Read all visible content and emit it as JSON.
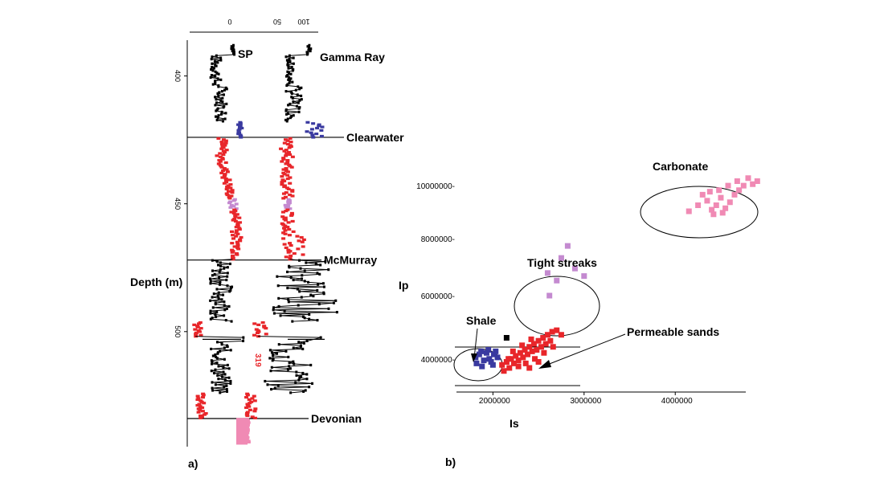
{
  "panel_a_label": "a)",
  "panel_b_label": "b)",
  "chart_data": [
    {
      "type": "line",
      "panel": "a",
      "ylabel": "Depth (m)",
      "depth_ticks": [
        400,
        450,
        500
      ],
      "depth_range": [
        386,
        545
      ],
      "sp_axis": {
        "ticks": [
          "0"
        ],
        "range": [
          0,
          50
        ]
      },
      "gr_axis": {
        "ticks": [
          "50",
          "100"
        ],
        "range": [
          0,
          140
        ]
      },
      "series": [
        {
          "name": "SP"
        },
        {
          "name": "Gamma Ray"
        }
      ],
      "formation_tops": [
        {
          "name": "Clearwater",
          "depth": 424
        },
        {
          "name": "McMurray",
          "depth": 472
        },
        {
          "name": "Devonian",
          "depth": 534
        }
      ],
      "annotations": [
        {
          "text": "319",
          "depth": 504
        }
      ],
      "facies_colors": {
        "shale": "#3a3aa0",
        "sand": "#e8262a",
        "tight": "#c48ad0",
        "carbonate": "#f08ab4",
        "other": "#000000"
      }
    },
    {
      "type": "scatter",
      "panel": "b",
      "xlabel": "Is",
      "ylabel": "Ip",
      "x_ticks": [
        "2000000",
        "3000000",
        "4000000"
      ],
      "y_ticks": [
        "4000000",
        "6000000",
        "8000000",
        "10000000"
      ],
      "xlim": [
        1600000,
        4950000
      ],
      "ylim": [
        3600000,
        11600000
      ],
      "groups": [
        {
          "name": "Shale",
          "color": "#3a3aa0",
          "points": [
            [
              1810000,
              4750000
            ],
            [
              1850000,
              4850000
            ],
            [
              1900000,
              4650000
            ],
            [
              1930000,
              4900000
            ],
            [
              1960000,
              4700000
            ],
            [
              2010000,
              4850000
            ],
            [
              1880000,
              4450000
            ],
            [
              2000000,
              4500000
            ],
            [
              1820000,
              4550000
            ],
            [
              1950000,
              5000000
            ],
            [
              2050000,
              4750000
            ],
            [
              1870000,
              4950000
            ],
            [
              1980000,
              4600000
            ],
            [
              2030000,
              4950000
            ]
          ]
        },
        {
          "name": "Permeable sands",
          "color": "#e8262a",
          "points": [
            [
              2100000,
              4500000
            ],
            [
              2150000,
              4600000
            ],
            [
              2200000,
              4700000
            ],
            [
              2250000,
              4800000
            ],
            [
              2300000,
              4900000
            ],
            [
              2350000,
              5000000
            ],
            [
              2400000,
              5100000
            ],
            [
              2450000,
              5200000
            ],
            [
              2500000,
              5300000
            ],
            [
              2550000,
              5400000
            ],
            [
              2600000,
              5500000
            ],
            [
              2650000,
              5600000
            ],
            [
              2700000,
              5650000
            ],
            [
              2180000,
              4400000
            ],
            [
              2230000,
              4550000
            ],
            [
              2280000,
              4650000
            ],
            [
              2330000,
              4750000
            ],
            [
              2380000,
              4850000
            ],
            [
              2430000,
              4950000
            ],
            [
              2480000,
              5000000
            ],
            [
              2530000,
              5100000
            ],
            [
              2580000,
              5200000
            ],
            [
              2630000,
              5300000
            ],
            [
              2120000,
              4300000
            ],
            [
              2170000,
              4700000
            ],
            [
              2320000,
              5150000
            ],
            [
              2420000,
              5350000
            ],
            [
              2280000,
              4450000
            ],
            [
              2360000,
              4550000
            ],
            [
              2460000,
              4700000
            ],
            [
              2560000,
              4900000
            ],
            [
              2660000,
              5100000
            ],
            [
              2220000,
              4950000
            ],
            [
              2400000,
              4400000
            ],
            [
              2750000,
              5500000
            ],
            [
              2500000,
              4600000
            ]
          ]
        },
        {
          "name": "Tight streaks",
          "color": "#c48ad0",
          "points": [
            [
              2820000,
              8450000
            ],
            [
              2750000,
              8050000
            ],
            [
              2900000,
              7700000
            ],
            [
              2600000,
              7550000
            ],
            [
              2700000,
              7300000
            ],
            [
              3000000,
              7450000
            ],
            [
              2620000,
              6800000
            ]
          ]
        },
        {
          "name": "Carbonate",
          "color": "#f08ab4",
          "points": [
            [
              4150000,
              9600000
            ],
            [
              4250000,
              9800000
            ],
            [
              4350000,
              9950000
            ],
            [
              4400000,
              9650000
            ],
            [
              4450000,
              9800000
            ],
            [
              4500000,
              10050000
            ],
            [
              4550000,
              9700000
            ],
            [
              4600000,
              9900000
            ],
            [
              4650000,
              10150000
            ],
            [
              4700000,
              10300000
            ],
            [
              4380000,
              10250000
            ],
            [
              4480000,
              10300000
            ],
            [
              4580000,
              10450000
            ],
            [
              4680000,
              10600000
            ],
            [
              4750000,
              10450000
            ],
            [
              4800000,
              10700000
            ],
            [
              4850000,
              10500000
            ],
            [
              4900000,
              10600000
            ],
            [
              4420000,
              9500000
            ],
            [
              4520000,
              9550000
            ],
            [
              4300000,
              10150000
            ]
          ]
        },
        {
          "name": "",
          "color": "#000000",
          "points": [
            [
              2150000,
              5400000
            ]
          ]
        }
      ],
      "annotations": [
        {
          "text": "Carbonate"
        },
        {
          "text": "Tight streaks"
        },
        {
          "text": "Shale"
        },
        {
          "text": "Permeable sands"
        }
      ]
    }
  ]
}
